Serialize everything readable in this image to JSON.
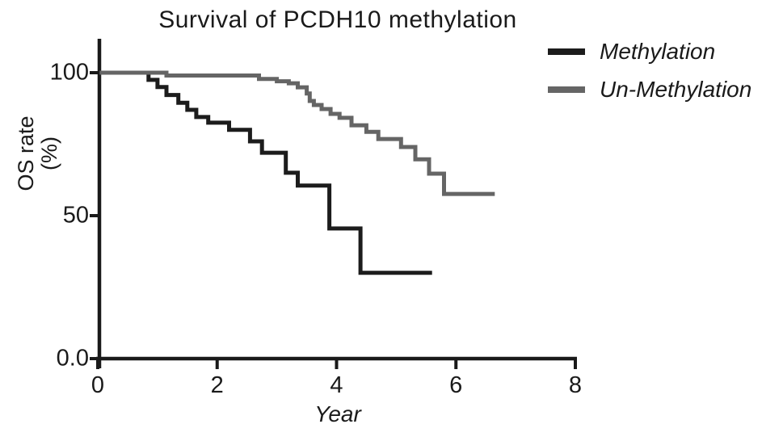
{
  "title": "Survival of PCDH10 methylation",
  "colors": {
    "ink": "#1a1a1a",
    "background": "#ffffff",
    "methylation_line": "#1c1c1c",
    "un_methylation_line": "#656565"
  },
  "axes": {
    "y_label_line1": "OS rate",
    "y_label_line2": "(%)",
    "x_label": "Year",
    "x_ticks": [
      {
        "value": 0,
        "label": "0"
      },
      {
        "value": 2,
        "label": "2"
      },
      {
        "value": 4,
        "label": "4"
      },
      {
        "value": 6,
        "label": "6"
      },
      {
        "value": 8,
        "label": "8"
      }
    ],
    "y_ticks": [
      {
        "value": 100,
        "label": "100"
      },
      {
        "value": 50,
        "label": "50"
      },
      {
        "value": 0,
        "label": "0.0"
      }
    ]
  },
  "legend": {
    "items": [
      {
        "label": "Methylation",
        "color": "#1c1c1c"
      },
      {
        "label": "Un-Methylation",
        "color": "#656565"
      }
    ]
  },
  "chart_data": {
    "type": "line",
    "subtype": "kaplan-meier-step",
    "title": "Survival of PCDH10 methylation",
    "xlabel": "Year",
    "ylabel": "OS rate (%)",
    "xlim": [
      0,
      8
    ],
    "ylim": [
      0,
      100
    ],
    "x_tick_values": [
      0,
      2,
      4,
      6,
      8
    ],
    "y_tick_values": [
      0,
      50,
      100
    ],
    "grid": false,
    "legend_position": "top-right",
    "series": [
      {
        "name": "Methylation",
        "color": "#1c1c1c",
        "stroke_width": 5,
        "points": [
          [
            0.03,
            100
          ],
          [
            0.85,
            97.5
          ],
          [
            1.0,
            95
          ],
          [
            1.15,
            92.2
          ],
          [
            1.35,
            89.5
          ],
          [
            1.5,
            87
          ],
          [
            1.65,
            84.5
          ],
          [
            1.85,
            82.5
          ],
          [
            2.2,
            80
          ],
          [
            2.55,
            76
          ],
          [
            2.75,
            72
          ],
          [
            3.15,
            65
          ],
          [
            3.35,
            60.5
          ],
          [
            3.88,
            45.5
          ],
          [
            4.4,
            30
          ],
          [
            5.6,
            30
          ]
        ]
      },
      {
        "name": "Un-Methylation",
        "color": "#656565",
        "stroke_width": 5,
        "points": [
          [
            0.03,
            100
          ],
          [
            1.15,
            99
          ],
          [
            2.7,
            97.8
          ],
          [
            3.0,
            97
          ],
          [
            3.2,
            96.3
          ],
          [
            3.35,
            94.9
          ],
          [
            3.5,
            92.7
          ],
          [
            3.55,
            90.1
          ],
          [
            3.62,
            88.7
          ],
          [
            3.75,
            87.3
          ],
          [
            3.9,
            85.6
          ],
          [
            4.05,
            84.2
          ],
          [
            4.25,
            81.6
          ],
          [
            4.5,
            79.3
          ],
          [
            4.7,
            76.8
          ],
          [
            5.08,
            74
          ],
          [
            5.32,
            69.7
          ],
          [
            5.55,
            64.7
          ],
          [
            5.8,
            57.6
          ],
          [
            6.65,
            57.6
          ]
        ]
      }
    ]
  }
}
